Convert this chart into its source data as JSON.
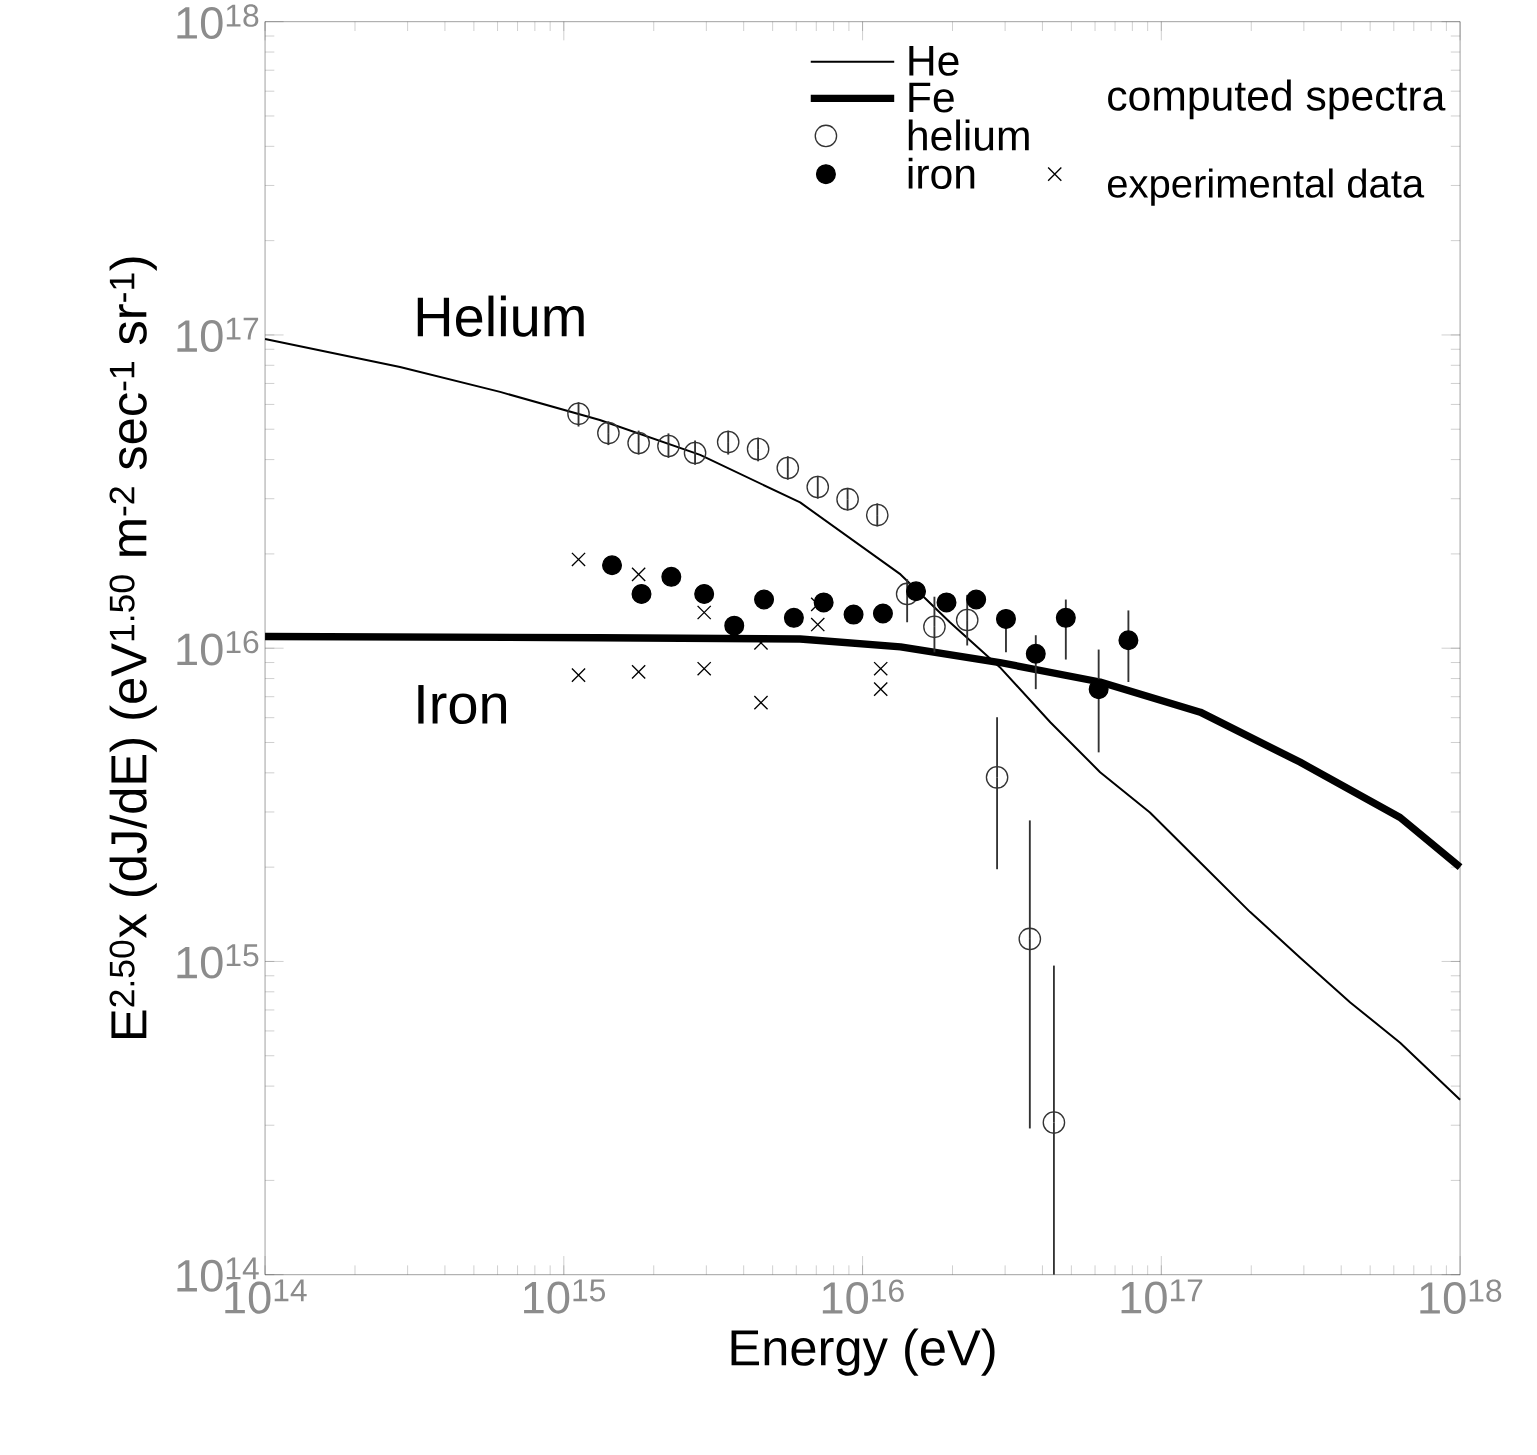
{
  "chart_data": {
    "type": "line",
    "xlabel": "Energy (eV)",
    "ylabel": "E$^{2.50}$x (dJ/dE)  (eV$^{1.50}$ m$^{-2}$ sec$^{-1}$ sr$^{-1}$)",
    "log": "xy",
    "legend": "top right",
    "legend_title": "computed spectra",
    "grid": false,
    "xlim": [
      100000000000000.0,
      1e+18
    ],
    "ylim": [
      100000000000000.0,
      1e+18
    ],
    "xticks": [
      {
        "value": 100000000000000.0,
        "label": "10$^{14}$"
      },
      {
        "value": 1000000000000000.0,
        "label": "10$^{15}$"
      },
      {
        "value": 1e+16,
        "label": "10$^{16}$"
      },
      {
        "value": 1e+17,
        "label": "10$^{17}$"
      },
      {
        "value": 1e+18,
        "label": "10$^{18}$"
      }
    ],
    "yticks": [
      {
        "value": 100000000000000.0,
        "label": "10$^{14}$"
      },
      {
        "value": 1000000000000000.0,
        "label": "10$^{15}$"
      },
      {
        "value": 1e+16,
        "label": "10$^{16}$"
      },
      {
        "value": 1e+17,
        "label": "10$^{17}$"
      },
      {
        "value": 1e+18,
        "label": "10$^{18}$"
      }
    ],
    "annotations": [
      "Helium",
      "Iron",
      "experimental data"
    ],
    "series": [
      {
        "name": "He",
        "color": "#000000",
        "marker": "none",
        "x": [
          100000000000000.0,
          283000000000000.0,
          612000000000000.0,
          1320000000000000.0,
          2860000000000000.0,
          6180000000000000.0,
          1.34e+16,
          1.96e+16,
          2.88e+16,
          4.25e+16,
          6.24e+16,
          9.16e+16,
          1.35e+17,
          1.98e+17,
          2.91e+17,
          4.29e+17,
          6.3e+17,
          1e+18
        ],
        "values": [
          9.7e+16,
          7.9e+16,
          6.58e+16,
          5.35e+16,
          4.14e+16,
          2.92e+16,
          1.72e+16,
          1.21e+16,
          8700000000000000.0,
          5800000000000000.0,
          4020000000000000.0,
          2990000000000000.0,
          2070000000000000.0,
          1440000000000000.0,
          1030000000000000.0,
          740000000000000.0,
          550000000000000.0,
          362000000000000.0
        ]
      },
      {
        "name": "Fe",
        "color": "#000000",
        "marker": "none",
        "x": [
          100000000000000.0,
          1320000000000000.0,
          6180000000000000.0,
          1.34e+16,
          2.88e+16,
          6.24e+16,
          1.35e+17,
          2.91e+17,
          6.3e+17,
          1e+18
        ],
        "values": [
          1.09e+16,
          1.08e+16,
          1.07e+16,
          1.01e+16,
          9000000000000000.0,
          7800000000000000.0,
          6250000000000000.0,
          4330000000000000.0,
          2880000000000000.0,
          2000000000000000.0
        ]
      },
      {
        "name": "helium",
        "type": "scatter",
        "color": "#333333",
        "marker": "circle",
        "x": [
          1120000000000000.0,
          1410000000000000.0,
          1780000000000000.0,
          2240000000000000.0,
          2750000000000000.0,
          3550000000000000.0,
          4470000000000000.0,
          5620000000000000.0,
          7080000000000000.0,
          8910000000000000.0,
          1.12e+16,
          1.41e+16,
          1.74e+16,
          2.24e+16,
          2.82e+16,
          3.63e+16,
          4.37e+16
        ],
        "values": [
          5.6e+16,
          4.86e+16,
          4.52e+16,
          4.42e+16,
          4.2e+16,
          4.55e+16,
          4.32e+16,
          3.76e+16,
          3.27e+16,
          2.99e+16,
          2.66e+16,
          1.49e+16,
          1.17e+16,
          1.23e+16,
          3870000000000000.0,
          1180000000000000.0,
          306000000000000.0
        ],
        "errors": [
          [
            5.1e+16,
            6.1e+16
          ],
          [
            4.45e+16,
            5.3e+16
          ],
          [
            4.15e+16,
            4.95e+16
          ],
          [
            4.05e+16,
            4.85e+16
          ],
          [
            3.85e+16,
            4.6e+16
          ],
          [
            4.15e+16,
            4.95e+16
          ],
          [
            3.95e+16,
            4.7e+16
          ],
          [
            3.45e+16,
            4.1e+16
          ],
          [
            3e+16,
            3.55e+16
          ],
          [
            2.75e+16,
            3.25e+16
          ],
          [
            2.45e+16,
            2.9e+16
          ],
          [
            1.21e+16,
            1.66e+16
          ],
          [
            9700000000000000.0,
            1.46e+16
          ],
          [
            1.02e+16,
            1.48e+16
          ],
          [
            1970000000000000.0,
            6020000000000000.0
          ],
          [
            293000000000000.0,
            2820000000000000.0
          ],
          [
            100000000000000.0,
            970000000000000.0
          ]
        ]
      },
      {
        "name": "iron",
        "type": "scatter",
        "color": "#000000",
        "marker": "circle",
        "x": [
          1450000000000000.0,
          1820000000000000.0,
          2290000000000000.0,
          2950000000000000.0,
          3720000000000000.0,
          4680000000000000.0,
          5890000000000000.0,
          7410000000000000.0,
          9330000000000000.0,
          1.17e+16,
          1.51e+16,
          1.91e+16,
          2.4e+16,
          3.02e+16,
          3.8e+16,
          4.79e+16,
          6.17e+16,
          7.76e+16
        ],
        "values": [
          1.84e+16,
          1.49e+16,
          1.69e+16,
          1.49e+16,
          1.18e+16,
          1.43e+16,
          1.25e+16,
          1.4e+16,
          1.28e+16,
          1.29e+16,
          1.52e+16,
          1.4e+16,
          1.43e+16,
          1.24e+16,
          9600000000000000.0,
          1.25e+16,
          7400000000000000.0,
          1.06e+16
        ],
        "errors": [
          null,
          null,
          null,
          null,
          null,
          null,
          null,
          null,
          null,
          null,
          null,
          null,
          null,
          [
            9700000000000000.0,
            1.33e+16
          ],
          [
            7400000000000000.0,
            1.1e+16
          ],
          [
            9200000000000000.0,
            1.43e+16
          ],
          [
            4650000000000000.0,
            9900000000000000.0
          ],
          [
            7800000000000000.0,
            1.32e+16
          ]
        ]
      },
      {
        "type": "scatter",
        "color": "#000000",
        "marker": "cross",
        "x": [
          1120000000000000.0,
          1120000000000000.0,
          1780000000000000.0,
          1780000000000000.0,
          2950000000000000.0,
          2950000000000000.0,
          4570000000000000.0,
          4570000000000000.0,
          7080000000000000.0,
          7080000000000000.0,
          1.15e+16,
          1.15e+16
        ],
        "values": [
          1.92e+16,
          8200000000000000.0,
          1.72e+16,
          8400000000000000.0,
          1.3e+16,
          8600000000000000.0,
          1.04e+16,
          6700000000000000.0,
          1.38e+16,
          1.19e+16,
          8600000000000000.0,
          7400000000000000.0
        ]
      }
    ]
  }
}
